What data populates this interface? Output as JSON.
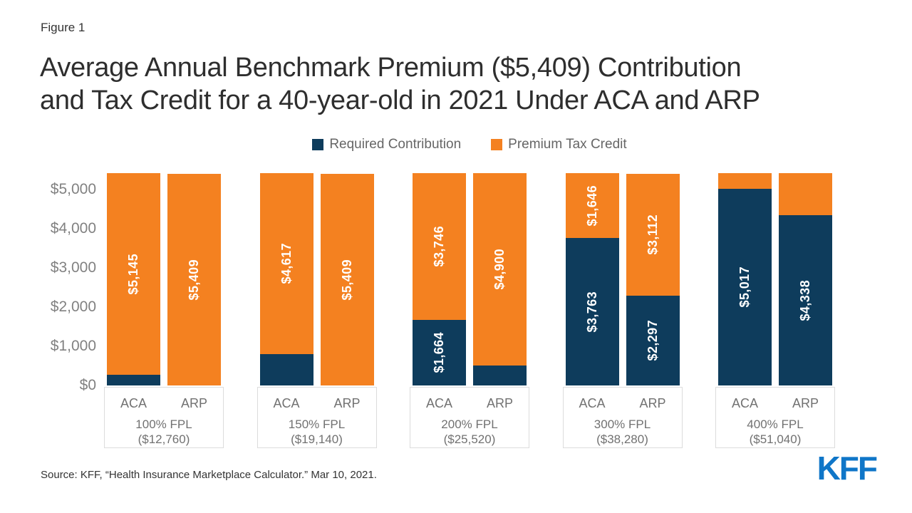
{
  "figure_label": "Figure 1",
  "title": {
    "line1": "Average Annual Benchmark Premium ($5,409) Contribution",
    "line2": "and Tax Credit for a 40-year-old in 2021 Under ACA and ARP"
  },
  "legend": {
    "items": [
      {
        "label": "Required Contribution",
        "color": "#0e3c5c"
      },
      {
        "label": "Premium Tax Credit",
        "color": "#f48120"
      }
    ]
  },
  "source_text": "Source: KFF, “Health Insurance Marketplace Calculator.” Mar 10, 2021.",
  "logo_text": "KFF",
  "logo_color": "#0f76c8",
  "chart_data": {
    "type": "bar",
    "stacked": true,
    "title": "Average Annual Benchmark Premium ($5,409) Contribution and Tax Credit for a 40-year-old in 2021 Under ACA and ARP",
    "benchmark_premium_total": 5409,
    "ylim": [
      0,
      5500
    ],
    "grid": false,
    "legend_position": "top",
    "yticks": [
      "$0",
      "$1,000",
      "$2,000",
      "$3,000",
      "$4,000",
      "$5,000"
    ],
    "ytick_values": [
      0,
      1000,
      2000,
      3000,
      4000,
      5000
    ],
    "series_names": [
      "Required Contribution",
      "Premium Tax Credit"
    ],
    "colors": {
      "required_contribution": "#0e3c5c",
      "premium_tax_credit": "#f48120"
    },
    "groups": [
      {
        "fpl_label": "100% FPL",
        "income_label": "($12,760)",
        "bars": [
          {
            "name": "ACA",
            "required_contribution": 264,
            "premium_tax_credit": 5145,
            "contribution_label": "",
            "credit_label": "$5,145"
          },
          {
            "name": "ARP",
            "required_contribution": 0,
            "premium_tax_credit": 5409,
            "contribution_label": "",
            "credit_label": "$5,409"
          }
        ]
      },
      {
        "fpl_label": "150% FPL",
        "income_label": "($19,140)",
        "bars": [
          {
            "name": "ACA",
            "required_contribution": 792,
            "premium_tax_credit": 4617,
            "contribution_label": "",
            "credit_label": "$4,617"
          },
          {
            "name": "ARP",
            "required_contribution": 0,
            "premium_tax_credit": 5409,
            "contribution_label": "",
            "credit_label": "$5,409"
          }
        ]
      },
      {
        "fpl_label": "200% FPL",
        "income_label": "($25,520)",
        "bars": [
          {
            "name": "ACA",
            "required_contribution": 1664,
            "premium_tax_credit": 3746,
            "contribution_label": "$1,664",
            "credit_label": "$3,746"
          },
          {
            "name": "ARP",
            "required_contribution": 509,
            "premium_tax_credit": 4900,
            "contribution_label": "",
            "credit_label": "$4,900"
          }
        ]
      },
      {
        "fpl_label": "300% FPL",
        "income_label": "($38,280)",
        "bars": [
          {
            "name": "ACA",
            "required_contribution": 3763,
            "premium_tax_credit": 1646,
            "contribution_label": "$3,763",
            "credit_label": "$1,646"
          },
          {
            "name": "ARP",
            "required_contribution": 2297,
            "premium_tax_credit": 3112,
            "contribution_label": "$2,297",
            "credit_label": "$3,112"
          }
        ]
      },
      {
        "fpl_label": "400% FPL",
        "income_label": "($51,040)",
        "bars": [
          {
            "name": "ACA",
            "required_contribution": 5017,
            "premium_tax_credit": 392,
            "contribution_label": "$5,017",
            "credit_label": ""
          },
          {
            "name": "ARP",
            "required_contribution": 4338,
            "premium_tax_credit": 1071,
            "contribution_label": "$4,338",
            "credit_label": ""
          }
        ]
      }
    ]
  }
}
